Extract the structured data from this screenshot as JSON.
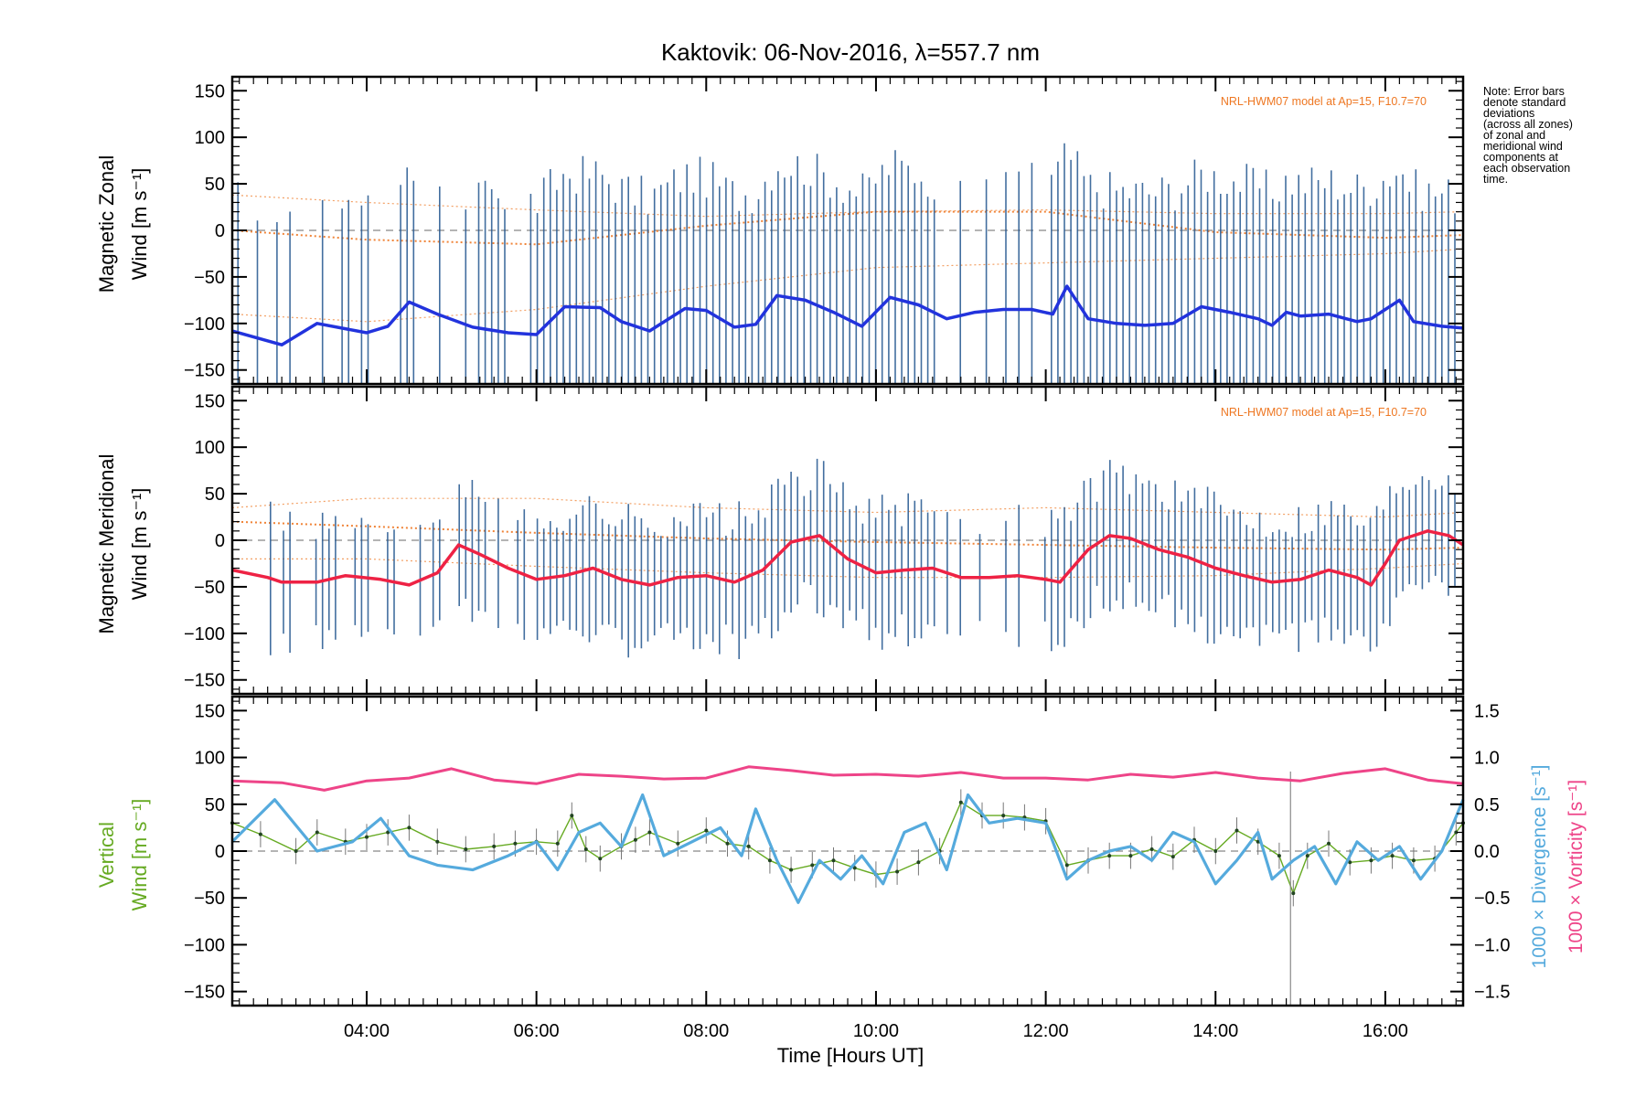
{
  "title": "Kaktovik: 06-Nov-2016, λ=557.7 nm",
  "note": [
    "Note: Error bars",
    "denote standard",
    "deviations",
    "(across all zones)",
    "of zonal and",
    "meridional wind",
    "components at",
    "each observation",
    "time."
  ],
  "colors": {
    "zonal": "#2233dd",
    "zonal_light": "#55aadd",
    "meridional": "#ee2244",
    "vertical": "#66aa22",
    "divergence": "#55aadd",
    "vorticity": "#ee4488",
    "model": "#ee7722",
    "errorbar": "#22558f",
    "zero_line": "#888888"
  },
  "chart_data": [
    {
      "type": "line",
      "panel": "zonal",
      "ylabel": [
        "Magnetic Zonal",
        "Wind [m s⁻¹]"
      ],
      "annotation": "NRL-HWM07 model at Ap=15, F10.7=70",
      "xlim": [
        "02:25",
        "16:55"
      ],
      "ylim": [
        -165,
        165
      ],
      "yticks": [
        "150",
        "100",
        "50",
        "0",
        "−50",
        "−100",
        "−150"
      ],
      "series": [
        {
          "x": [
            "02:25",
            "03:00",
            "03:25",
            "04:00",
            "04:15",
            "04:30",
            "04:50",
            "05:15",
            "05:40",
            "06:00",
            "06:20",
            "06:45",
            "07:00",
            "07:20",
            "07:45",
            "08:00",
            "08:20",
            "08:35",
            "08:50",
            "09:10",
            "09:30",
            "09:50",
            "10:10",
            "10:30",
            "10:50",
            "11:10",
            "11:30",
            "11:50",
            "12:05",
            "12:15",
            "12:30",
            "12:50",
            "13:10",
            "13:30",
            "13:50",
            "14:10",
            "14:30",
            "14:40",
            "14:50",
            "15:00",
            "15:20",
            "15:40",
            "15:50",
            "16:00",
            "16:10",
            "16:20",
            "16:40",
            "16:55"
          ],
          "values": [
            -108,
            -123,
            -100,
            -110,
            -103,
            -77,
            -90,
            -104,
            -110,
            -112,
            -82,
            -83,
            -98,
            -108,
            -84,
            -86,
            -104,
            -101,
            -70,
            -75,
            -88,
            -103,
            -72,
            -80,
            -95,
            -88,
            -85,
            -85,
            -90,
            -60,
            -95,
            -100,
            -102,
            -100,
            -82,
            -88,
            -95,
            -102,
            -88,
            -92,
            -90,
            -98,
            -95,
            -85,
            -75,
            -98,
            -103,
            -105
          ]
        }
      ],
      "model_curves": [
        {
          "x": [
            "02:25",
            "04:00",
            "06:00",
            "08:00",
            "10:00",
            "12:00",
            "14:00",
            "16:00",
            "16:55"
          ],
          "values": [
            0,
            -10,
            -15,
            5,
            20,
            20,
            -2,
            -8,
            -5
          ]
        },
        {
          "x": [
            "02:25",
            "04:00",
            "06:00",
            "08:00",
            "10:00",
            "12:00",
            "14:00",
            "16:00",
            "16:55"
          ],
          "values": [
            38,
            30,
            22,
            15,
            20,
            22,
            18,
            18,
            20
          ]
        },
        {
          "x": [
            "02:25",
            "04:00",
            "06:00",
            "08:00",
            "10:00",
            "12:00",
            "14:00",
            "16:00",
            "16:55"
          ],
          "values": [
            -90,
            -98,
            -85,
            -60,
            -40,
            -35,
            -30,
            -25,
            -20
          ]
        }
      ]
    },
    {
      "type": "line",
      "panel": "meridional",
      "ylabel": [
        "Magnetic Meridional",
        "Wind [m s⁻¹]"
      ],
      "annotation": "NRL-HWM07 model at Ap=15, F10.7=70",
      "xlim": [
        "02:25",
        "16:55"
      ],
      "ylim": [
        -165,
        165
      ],
      "yticks": [
        "150",
        "100",
        "50",
        "0",
        "−50",
        "−100",
        "−150"
      ],
      "series": [
        {
          "x": [
            "02:25",
            "02:50",
            "03:00",
            "03:25",
            "03:45",
            "04:10",
            "04:30",
            "04:50",
            "05:05",
            "05:20",
            "05:40",
            "06:00",
            "06:20",
            "06:40",
            "07:00",
            "07:20",
            "07:40",
            "08:00",
            "08:20",
            "08:40",
            "09:00",
            "09:20",
            "09:40",
            "10:00",
            "10:20",
            "10:40",
            "11:00",
            "11:20",
            "11:40",
            "12:00",
            "12:10",
            "12:30",
            "12:45",
            "13:00",
            "13:20",
            "13:40",
            "14:00",
            "14:20",
            "14:40",
            "15:00",
            "15:20",
            "15:40",
            "15:50",
            "16:00",
            "16:10",
            "16:20",
            "16:30",
            "16:45",
            "16:55"
          ],
          "values": [
            -32,
            -40,
            -45,
            -45,
            -38,
            -42,
            -48,
            -35,
            -5,
            -15,
            -30,
            -42,
            -38,
            -30,
            -42,
            -48,
            -40,
            -38,
            -45,
            -32,
            -2,
            5,
            -20,
            -35,
            -32,
            -30,
            -40,
            -40,
            -38,
            -42,
            -45,
            -10,
            5,
            2,
            -10,
            -18,
            -30,
            -38,
            -45,
            -42,
            -32,
            -40,
            -48,
            -25,
            0,
            5,
            10,
            5,
            -5
          ]
        }
      ],
      "model_curves": [
        {
          "x": [
            "02:25",
            "04:00",
            "06:00",
            "08:00",
            "10:00",
            "12:00",
            "14:00",
            "16:00",
            "16:55"
          ],
          "values": [
            20,
            15,
            8,
            2,
            -2,
            -5,
            -8,
            -10,
            -8
          ]
        },
        {
          "x": [
            "02:25",
            "04:00",
            "06:00",
            "08:00",
            "10:00",
            "12:00",
            "14:00",
            "16:00",
            "16:55"
          ],
          "values": [
            35,
            45,
            45,
            35,
            30,
            35,
            30,
            25,
            30
          ]
        },
        {
          "x": [
            "02:25",
            "04:00",
            "06:00",
            "08:00",
            "10:00",
            "12:00",
            "14:00",
            "16:00",
            "16:55"
          ],
          "values": [
            -20,
            -20,
            -28,
            -35,
            -40,
            -40,
            -38,
            -30,
            -25
          ]
        }
      ]
    },
    {
      "type": "line",
      "panel": "vertical",
      "ylabel": [
        "Vertical",
        "Wind [m s⁻¹]"
      ],
      "y2label": "1000 × Divergence [s⁻¹]",
      "y3label": "1000 × Vorticity [s⁻¹]",
      "xlabel": "Time [Hours UT]",
      "xlim": [
        "02:25",
        "16:55"
      ],
      "ylim": [
        -165,
        165
      ],
      "yticks": [
        "150",
        "100",
        "50",
        "0",
        "−50",
        "−100",
        "−150"
      ],
      "y2lim": [
        -1.65,
        1.65
      ],
      "y2ticks": [
        "1.5",
        "1.0",
        "0.5",
        "0.0",
        "−0.5",
        "−1.0",
        "−1.5"
      ],
      "xticks": [
        "04:00",
        "06:00",
        "08:00",
        "10:00",
        "12:00",
        "14:00",
        "16:00"
      ],
      "series": [
        {
          "name": "vertical",
          "x": [
            "02:25",
            "02:45",
            "03:10",
            "03:25",
            "03:45",
            "04:00",
            "04:15",
            "04:30",
            "04:50",
            "05:10",
            "05:30",
            "05:45",
            "06:00",
            "06:15",
            "06:25",
            "06:35",
            "06:45",
            "07:00",
            "07:10",
            "07:20",
            "07:40",
            "08:00",
            "08:15",
            "08:30",
            "08:45",
            "09:00",
            "09:15",
            "09:30",
            "09:45",
            "10:00",
            "10:15",
            "10:30",
            "10:45",
            "11:00",
            "11:15",
            "11:30",
            "11:45",
            "12:00",
            "12:15",
            "12:30",
            "12:45",
            "13:00",
            "13:15",
            "13:30",
            "13:45",
            "14:00",
            "14:15",
            "14:30",
            "14:45",
            "14:55",
            "15:05",
            "15:20",
            "15:35",
            "15:50",
            "16:05",
            "16:20",
            "16:35",
            "16:50",
            "16:55"
          ],
          "values": [
            30,
            18,
            0,
            20,
            10,
            15,
            20,
            25,
            10,
            2,
            5,
            8,
            10,
            8,
            38,
            2,
            -8,
            5,
            12,
            20,
            8,
            22,
            8,
            5,
            -10,
            -20,
            -15,
            -10,
            -18,
            -25,
            -22,
            -12,
            0,
            52,
            38,
            38,
            36,
            32,
            -15,
            -10,
            -5,
            -5,
            2,
            -6,
            12,
            0,
            22,
            10,
            -5,
            -45,
            -5,
            8,
            -12,
            -10,
            -5,
            -10,
            -8,
            20,
            30
          ]
        },
        {
          "name": "divergence",
          "x": [
            "02:25",
            "02:55",
            "03:25",
            "03:50",
            "04:10",
            "04:30",
            "04:50",
            "05:15",
            "05:40",
            "06:00",
            "06:15",
            "06:30",
            "06:45",
            "07:00",
            "07:15",
            "07:30",
            "07:50",
            "08:10",
            "08:25",
            "08:35",
            "08:50",
            "09:05",
            "09:20",
            "09:35",
            "09:50",
            "10:05",
            "10:20",
            "10:35",
            "10:50",
            "11:05",
            "11:20",
            "11:40",
            "12:00",
            "12:15",
            "12:30",
            "12:45",
            "13:00",
            "13:15",
            "13:30",
            "13:45",
            "14:00",
            "14:15",
            "14:30",
            "14:40",
            "14:55",
            "15:10",
            "15:25",
            "15:40",
            "15:55",
            "16:10",
            "16:25",
            "16:40",
            "16:55"
          ],
          "values": [
            0.1,
            0.55,
            0.0,
            0.1,
            0.35,
            -0.05,
            -0.15,
            -0.2,
            -0.05,
            0.1,
            -0.2,
            0.2,
            0.3,
            0.05,
            0.6,
            -0.05,
            0.1,
            0.25,
            -0.05,
            0.45,
            -0.1,
            -0.55,
            -0.1,
            -0.3,
            -0.05,
            -0.35,
            0.2,
            0.3,
            -0.2,
            0.6,
            0.3,
            0.35,
            0.3,
            -0.3,
            -0.1,
            0.0,
            0.05,
            -0.1,
            0.2,
            0.1,
            -0.35,
            -0.1,
            0.2,
            -0.3,
            -0.1,
            0.05,
            -0.35,
            0.1,
            -0.1,
            0.05,
            -0.3,
            0.0,
            0.55
          ]
        },
        {
          "name": "vorticity",
          "x": [
            "02:25",
            "03:00",
            "03:30",
            "04:00",
            "04:30",
            "05:00",
            "05:30",
            "06:00",
            "06:30",
            "07:00",
            "07:30",
            "08:00",
            "08:30",
            "09:00",
            "09:30",
            "10:00",
            "10:30",
            "11:00",
            "11:30",
            "12:00",
            "12:30",
            "13:00",
            "13:30",
            "14:00",
            "14:30",
            "15:00",
            "15:30",
            "16:00",
            "16:30",
            "16:55"
          ],
          "values": [
            0.75,
            0.73,
            0.65,
            0.75,
            0.78,
            0.88,
            0.76,
            0.72,
            0.82,
            0.8,
            0.77,
            0.78,
            0.9,
            0.86,
            0.81,
            0.82,
            0.8,
            0.84,
            0.78,
            0.78,
            0.76,
            0.82,
            0.79,
            0.84,
            0.78,
            0.75,
            0.83,
            0.88,
            0.76,
            0.72
          ]
        }
      ]
    }
  ]
}
